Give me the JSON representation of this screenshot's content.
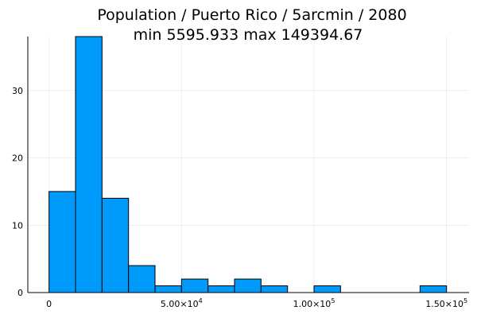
{
  "chart_data": {
    "type": "bar",
    "title": "Population / Puerto Rico / 5arcmin / 2080",
    "subtitle": "min 5595.933  max 149394.67",
    "xlabel": "",
    "ylabel": "",
    "bin_edges": [
      0,
      10000,
      20000,
      30000,
      40000,
      50000,
      60000,
      70000,
      80000,
      90000,
      100000,
      110000,
      120000,
      130000,
      140000,
      150000
    ],
    "values": [
      15,
      38,
      14,
      4,
      1,
      2,
      1,
      2,
      1,
      0,
      1,
      0,
      0,
      0,
      1
    ],
    "xlim": [
      -8000,
      158500
    ],
    "ylim": [
      0,
      38
    ],
    "x_ticks": [
      {
        "value": 0,
        "label": "0"
      },
      {
        "value": 50000,
        "mantissa": "5.00×10",
        "exponent": "4"
      },
      {
        "value": 100000,
        "mantissa": "1.00×10",
        "exponent": "5"
      },
      {
        "value": 150000,
        "mantissa": "1.50×10",
        "exponent": "5"
      }
    ],
    "y_ticks": [
      {
        "value": 0,
        "label": "0"
      },
      {
        "value": 10,
        "label": "10"
      },
      {
        "value": 20,
        "label": "20"
      },
      {
        "value": 30,
        "label": "30"
      }
    ],
    "grid": true,
    "legend": "none",
    "bar_color": "#009AFA"
  }
}
